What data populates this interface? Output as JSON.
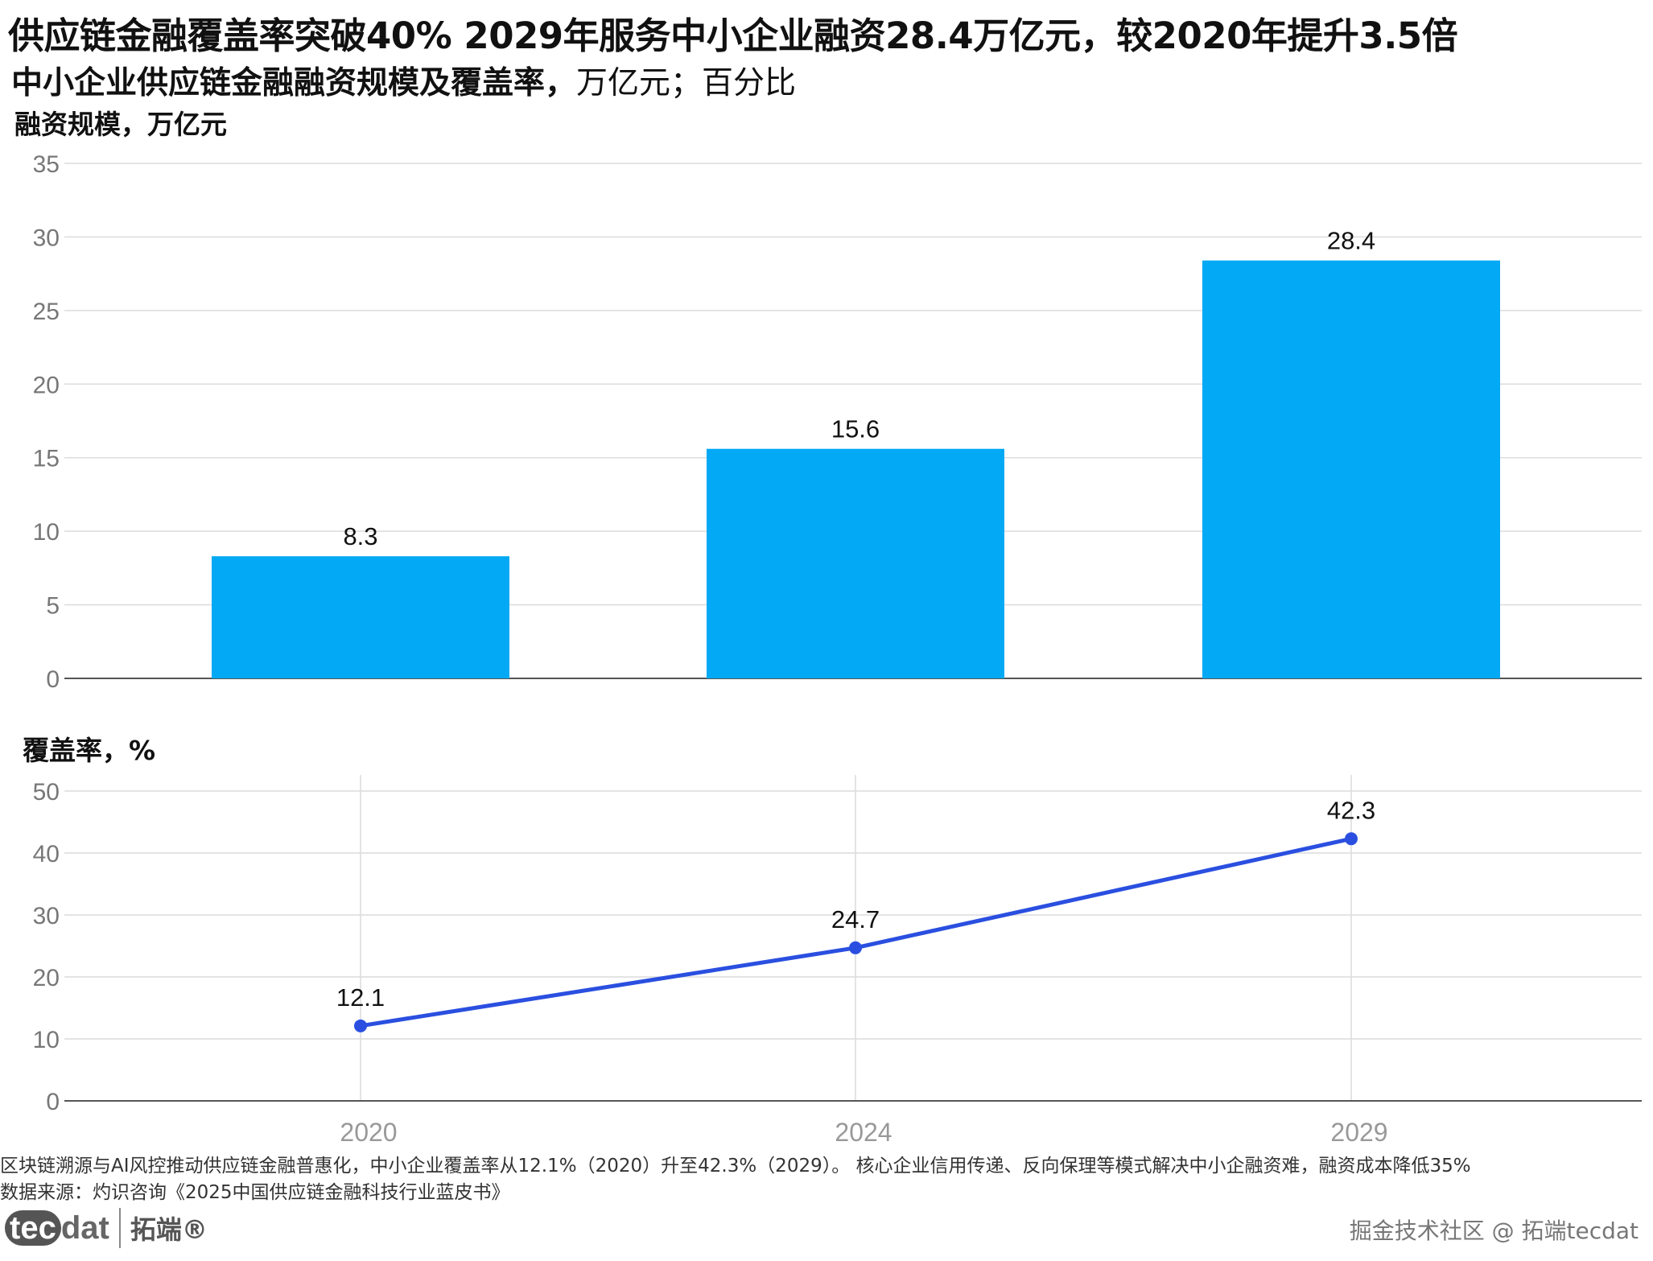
{
  "header": {
    "title": "供应链金融覆盖率突破40% 2029年服务中小企业融资28.4万亿元，较2020年提升3.5倍",
    "subtitle_main": "中小企业供应链金融融资规模及覆盖率，",
    "subtitle_units": "万亿元；百分比"
  },
  "colors": {
    "bar": "#03a9f4",
    "line": "#2a4fe0",
    "grid": "#dcdcdc",
    "axis": "#555555"
  },
  "chart_data": [
    {
      "type": "bar",
      "ylabel": "融资规模，万亿元",
      "categories": [
        "2020",
        "2024",
        "2029"
      ],
      "values": [
        8.3,
        15.6,
        28.4
      ],
      "data_labels": [
        "8.3",
        "15.6",
        "28.4"
      ],
      "ylim": [
        0,
        35
      ],
      "yticks": [
        "0",
        "5",
        "10",
        "15",
        "20",
        "25",
        "30",
        "35"
      ],
      "grid": true
    },
    {
      "type": "line",
      "ylabel": "覆盖率，%",
      "x": [
        "2020",
        "2024",
        "2029"
      ],
      "values": [
        12.1,
        24.7,
        42.3
      ],
      "data_labels": [
        "12.1",
        "24.7",
        "42.3"
      ],
      "ylim": [
        0,
        50
      ],
      "yticks": [
        "0",
        "10",
        "20",
        "30",
        "40",
        "50"
      ],
      "xticks": [
        "2020",
        "2024",
        "2029"
      ],
      "grid": true
    }
  ],
  "footer": {
    "note": "区块链溯源与AI风控推动供应链金融普惠化，中小企业覆盖率从12.1%（2020）升至42.3%（2029）。 核心企业信用传递、反向保理等模式解决中小企融资难，融资成本降低35%",
    "source": "数据来源：灼识咨询《2025中国供应链金融科技行业蓝皮书》",
    "logo_text": "tecdat",
    "logo_cn": "拓端®",
    "watermark": "掘金技术社区 @ 拓端tecdat"
  }
}
